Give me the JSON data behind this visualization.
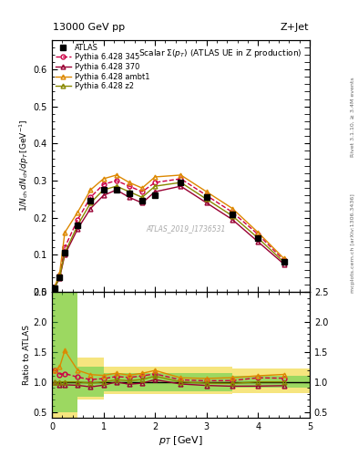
{
  "title_left": "13000 GeV pp",
  "title_right": "Z+Jet",
  "plot_title": "Scalar Σ(p_T) (ATLAS UE in Z production)",
  "right_label_top": "Rivet 3.1.10, ≥ 3.4M events",
  "right_label_bot": "mcplots.cern.ch [arXiv:1306.3436]",
  "watermark": "ATLAS_2019_I1736531",
  "ylabel_main": "1/N_{ch} dN_{ch}/dp_T [GeV]",
  "ylabel_ratio": "Ratio to ATLAS",
  "xlabel": "p_T [GeV]",
  "atlas_x": [
    0.05,
    0.15,
    0.25,
    0.5,
    0.75,
    1.0,
    1.25,
    1.5,
    1.75,
    2.0,
    2.5,
    3.0,
    3.5,
    4.0,
    4.5
  ],
  "atlas_y": [
    0.01,
    0.04,
    0.105,
    0.18,
    0.245,
    0.275,
    0.275,
    0.265,
    0.245,
    0.26,
    0.295,
    0.255,
    0.21,
    0.145,
    0.08
  ],
  "py345_x": [
    0.05,
    0.15,
    0.25,
    0.5,
    0.75,
    1.0,
    1.25,
    1.5,
    1.75,
    2.0,
    2.5,
    3.0,
    3.5,
    4.0,
    4.5
  ],
  "py345_y": [
    0.012,
    0.045,
    0.12,
    0.195,
    0.255,
    0.29,
    0.3,
    0.285,
    0.27,
    0.295,
    0.305,
    0.26,
    0.215,
    0.155,
    0.085
  ],
  "py370_x": [
    0.05,
    0.15,
    0.25,
    0.5,
    0.75,
    1.0,
    1.25,
    1.5,
    1.75,
    2.0,
    2.5,
    3.0,
    3.5,
    4.0,
    4.5
  ],
  "py370_y": [
    0.01,
    0.038,
    0.1,
    0.17,
    0.225,
    0.26,
    0.275,
    0.255,
    0.24,
    0.27,
    0.285,
    0.24,
    0.195,
    0.135,
    0.075
  ],
  "pyambt1_x": [
    0.05,
    0.15,
    0.25,
    0.5,
    0.75,
    1.0,
    1.25,
    1.5,
    1.75,
    2.0,
    2.5,
    3.0,
    3.5,
    4.0,
    4.5
  ],
  "pyambt1_y": [
    0.012,
    0.05,
    0.16,
    0.215,
    0.275,
    0.305,
    0.315,
    0.295,
    0.28,
    0.31,
    0.315,
    0.27,
    0.225,
    0.16,
    0.09
  ],
  "pyz2_x": [
    0.05,
    0.15,
    0.25,
    0.5,
    0.75,
    1.0,
    1.25,
    1.5,
    1.75,
    2.0,
    2.5,
    3.0,
    3.5,
    4.0,
    4.5
  ],
  "pyz2_y": [
    0.01,
    0.04,
    0.105,
    0.18,
    0.24,
    0.275,
    0.285,
    0.27,
    0.255,
    0.285,
    0.295,
    0.25,
    0.205,
    0.145,
    0.08
  ],
  "atlas_color": "#000000",
  "py345_color": "#cc0044",
  "py370_color": "#990033",
  "pyambt1_color": "#dd8800",
  "pyz2_color": "#888800",
  "ratio_x": [
    0.05,
    0.15,
    0.25,
    0.5,
    0.75,
    1.0,
    1.25,
    1.5,
    1.75,
    2.0,
    2.5,
    3.0,
    3.5,
    4.0,
    4.5
  ],
  "ratio_py345": [
    1.2,
    1.125,
    1.14,
    1.08,
    1.04,
    1.055,
    1.09,
    1.075,
    1.1,
    1.135,
    1.034,
    1.02,
    1.024,
    1.069,
    1.0625
  ],
  "ratio_py370": [
    1.0,
    0.95,
    0.952,
    0.944,
    0.918,
    0.946,
    1.0,
    0.962,
    0.98,
    1.038,
    0.966,
    0.941,
    0.929,
    0.931,
    0.9375
  ],
  "ratio_pyambt1": [
    1.2,
    1.25,
    1.524,
    1.194,
    1.122,
    1.109,
    1.145,
    1.113,
    1.143,
    1.192,
    1.068,
    1.059,
    1.071,
    1.103,
    1.125
  ],
  "ratio_pyz2": [
    1.0,
    1.0,
    1.0,
    1.0,
    0.98,
    1.0,
    1.036,
    1.019,
    1.041,
    1.096,
    1.0,
    0.98,
    0.976,
    1.0,
    1.0
  ],
  "ylim_main": [
    0.0,
    0.68
  ],
  "ylim_ratio": [
    0.4,
    2.5
  ],
  "xlim": [
    0.0,
    5.0
  ],
  "band_edges": [
    0.0,
    0.5,
    1.0,
    1.5,
    2.0,
    2.5,
    3.0,
    3.5,
    4.0,
    4.5,
    5.0
  ],
  "green_lo": [
    0.5,
    0.75,
    0.85,
    0.85,
    0.85,
    0.85,
    0.85,
    0.9,
    0.9,
    0.9
  ],
  "green_hi": [
    3.0,
    1.25,
    1.15,
    1.15,
    1.15,
    1.15,
    1.15,
    1.1,
    1.1,
    1.1
  ],
  "yellow_lo": [
    0.35,
    0.7,
    0.8,
    0.8,
    0.8,
    0.8,
    0.8,
    0.82,
    0.82,
    0.82
  ],
  "yellow_hi": [
    3.5,
    1.4,
    1.25,
    1.25,
    1.25,
    1.25,
    1.25,
    1.22,
    1.22,
    1.22
  ],
  "green_band_color": "#44cc44",
  "yellow_band_color": "#eecc00",
  "green_band_alpha": 0.5,
  "yellow_band_alpha": 0.5
}
